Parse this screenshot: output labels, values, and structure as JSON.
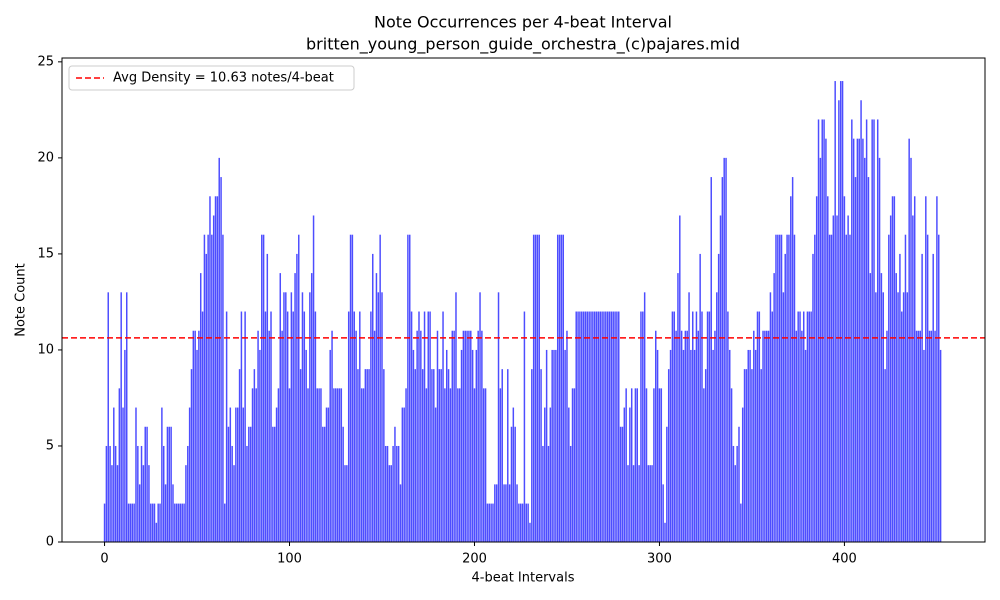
{
  "chart_data": {
    "type": "bar",
    "title": "Note Occurrences per 4-beat Interval",
    "subtitle": "britten_young_person_guide_orchestra_(c)pajares.mid",
    "xlabel": "4-beat Intervals",
    "ylabel": "Note Count",
    "color": "#4d4dff",
    "xlim": [
      -23,
      476
    ],
    "ylim": [
      0,
      25.2
    ],
    "xticks": [
      0,
      100,
      200,
      300,
      400
    ],
    "yticks": [
      0,
      5,
      10,
      15,
      20,
      25
    ],
    "legend": "upper left",
    "avg_line": {
      "value": 10.63,
      "label": "Avg Density = 10.63 notes/4-beat",
      "color": "#ff0000"
    },
    "x": [
      0,
      1,
      2,
      3,
      4,
      5,
      6,
      7,
      8,
      9,
      10,
      11,
      12,
      13,
      14,
      15,
      16,
      17,
      18,
      19,
      20,
      21,
      22,
      23,
      24,
      25,
      26,
      27,
      28,
      29,
      30,
      31,
      32,
      33,
      34,
      35,
      36,
      37,
      38,
      39,
      40,
      41,
      42,
      43,
      44,
      45,
      46,
      47,
      48,
      49,
      50,
      51,
      52,
      53,
      54,
      55,
      56,
      57,
      58,
      59,
      60,
      61,
      62,
      63,
      64,
      65,
      66,
      67,
      68,
      69,
      70,
      71,
      72,
      73,
      74,
      75,
      76,
      77,
      78,
      79,
      80,
      81,
      82,
      83,
      84,
      85,
      86,
      87,
      88,
      89,
      90,
      91,
      92,
      93,
      94,
      95,
      96,
      97,
      98,
      99,
      100,
      101,
      102,
      103,
      104,
      105,
      106,
      107,
      108,
      109,
      110,
      111,
      112,
      113,
      114,
      115,
      116,
      117,
      118,
      119,
      120,
      121,
      122,
      123,
      124,
      125,
      126,
      127,
      128,
      129,
      130,
      131,
      132,
      133,
      134,
      135,
      136,
      137,
      138,
      139,
      140,
      141,
      142,
      143,
      144,
      145,
      146,
      147,
      148,
      149,
      150,
      151,
      152,
      153,
      154,
      155,
      156,
      157,
      158,
      159,
      160,
      161,
      162,
      163,
      164,
      165,
      166,
      167,
      168,
      169,
      170,
      171,
      172,
      173,
      174,
      175,
      176,
      177,
      178,
      179,
      180,
      181,
      182,
      183,
      184,
      185,
      186,
      187,
      188,
      189,
      190,
      191,
      192,
      193,
      194,
      195,
      196,
      197,
      198,
      199,
      200,
      201,
      202,
      203,
      204,
      205,
      206,
      207,
      208,
      209,
      210,
      211,
      212,
      213,
      214,
      215,
      216,
      217,
      218,
      219,
      220,
      221,
      222,
      223,
      224,
      225,
      226,
      227,
      228,
      229,
      230,
      231,
      232,
      233,
      234,
      235,
      236,
      237,
      238,
      239,
      240,
      241,
      242,
      243,
      244,
      245,
      246,
      247,
      248,
      249,
      250,
      251,
      252,
      253,
      254,
      255,
      256,
      257,
      258,
      259,
      260,
      261,
      262,
      263,
      264,
      265,
      266,
      267,
      268,
      269,
      270,
      271,
      272,
      273,
      274,
      275,
      276,
      277,
      278,
      279,
      280,
      281,
      282,
      283,
      284,
      285,
      286,
      287,
      288,
      289,
      290,
      291,
      292,
      293,
      294,
      295,
      296,
      297,
      298,
      299,
      300,
      301,
      302,
      303,
      304,
      305,
      306,
      307,
      308,
      309,
      310,
      311,
      312,
      313,
      314,
      315,
      316,
      317,
      318,
      319,
      320,
      321,
      322,
      323,
      324,
      325,
      326,
      327,
      328,
      329,
      330,
      331,
      332,
      333,
      334,
      335,
      336,
      337,
      338,
      339,
      340,
      341,
      342,
      343,
      344,
      345,
      346,
      347,
      348,
      349,
      350,
      351,
      352,
      353,
      354,
      355,
      356,
      357,
      358,
      359,
      360,
      361,
      362,
      363,
      364,
      365,
      366,
      367,
      368,
      369,
      370,
      371,
      372,
      373,
      374,
      375,
      376,
      377,
      378,
      379,
      380,
      381,
      382,
      383,
      384,
      385,
      386,
      387,
      388,
      389,
      390,
      391,
      392,
      393,
      394,
      395,
      396,
      397,
      398,
      399,
      400,
      401,
      402,
      403,
      404,
      405,
      406,
      407,
      408,
      409,
      410,
      411,
      412,
      413,
      414,
      415,
      416,
      417,
      418,
      419,
      420,
      421,
      422,
      423,
      424,
      425,
      426,
      427,
      428,
      429,
      430,
      431,
      432,
      433,
      434,
      435,
      436,
      437,
      438,
      439,
      440,
      441,
      442,
      443,
      444,
      445,
      446,
      447,
      448,
      449,
      450,
      451,
      452
    ],
    "values": [
      2,
      5,
      13,
      5,
      4,
      7,
      5,
      4,
      8,
      13,
      7,
      10,
      13,
      2,
      2,
      2,
      2,
      7,
      5,
      3,
      5,
      4,
      6,
      6,
      4,
      2,
      2,
      2,
      1,
      2,
      2,
      7,
      5,
      3,
      6,
      6,
      6,
      3,
      2,
      2,
      2,
      2,
      2,
      2,
      4,
      5,
      7,
      9,
      11,
      11,
      10,
      11,
      14,
      12,
      16,
      15,
      16,
      18,
      16,
      17,
      18,
      18,
      20,
      19,
      16,
      2,
      12,
      6,
      7,
      5,
      4,
      7,
      7,
      9,
      12,
      7,
      12,
      5,
      6,
      6,
      8,
      9,
      8,
      11,
      10,
      16,
      16,
      12,
      15,
      11,
      12,
      6,
      6,
      7,
      8,
      14,
      11,
      13,
      13,
      12,
      8,
      13,
      12,
      14,
      15,
      16,
      9,
      13,
      12,
      10,
      8,
      13,
      14,
      17,
      12,
      8,
      8,
      8,
      6,
      6,
      7,
      7,
      10,
      11,
      8,
      8,
      8,
      8,
      8,
      6,
      4,
      4,
      12,
      16,
      16,
      12,
      11,
      9,
      12,
      8,
      8,
      9,
      9,
      9,
      12,
      15,
      11,
      14,
      13,
      16,
      13,
      9,
      5,
      5,
      4,
      4,
      5,
      6,
      5,
      5,
      3,
      7,
      7,
      8,
      16,
      16,
      12,
      10,
      9,
      11,
      12,
      11,
      9,
      12,
      8,
      12,
      12,
      9,
      9,
      7,
      11,
      9,
      9,
      12,
      8,
      10,
      9,
      8,
      11,
      11,
      13,
      8,
      8,
      10,
      11,
      11,
      11,
      11,
      11,
      10,
      8,
      10,
      11,
      13,
      11,
      8,
      8,
      2,
      2,
      2,
      2,
      3,
      3,
      13,
      8,
      9,
      3,
      3,
      9,
      3,
      6,
      7,
      6,
      3,
      2,
      2,
      2,
      12,
      2,
      2,
      1,
      9,
      16,
      16,
      16,
      16,
      9,
      5,
      7,
      10,
      5,
      7,
      10,
      10,
      10,
      16,
      16,
      16,
      16,
      10,
      11,
      7,
      5,
      8,
      8,
      12,
      12,
      12,
      12,
      12,
      12,
      12,
      12,
      12,
      12,
      12,
      12,
      12,
      12,
      12,
      12,
      12,
      12,
      12,
      12,
      12,
      12,
      12,
      12,
      6,
      6,
      7,
      8,
      4,
      7,
      8,
      4,
      8,
      8,
      4,
      12,
      12,
      13,
      8,
      4,
      4,
      4,
      8,
      11,
      10,
      8,
      8,
      3,
      1,
      6,
      9,
      10,
      12,
      12,
      11,
      14,
      17,
      11,
      10,
      11,
      11,
      13,
      10,
      12,
      10,
      12,
      11,
      15,
      12,
      8,
      9,
      12,
      12,
      19,
      10,
      11,
      13,
      15,
      17,
      19,
      20,
      20,
      12,
      10,
      8,
      5,
      4,
      5,
      6,
      2,
      7,
      9,
      9,
      10,
      10,
      9,
      11,
      10,
      12,
      12,
      9,
      11,
      11,
      11,
      11,
      13,
      12,
      14,
      16,
      16,
      16,
      16,
      13,
      15,
      16,
      16,
      18,
      19,
      16,
      11,
      12,
      12,
      11,
      12,
      10,
      12,
      12,
      12,
      15,
      16,
      18,
      22,
      20,
      22,
      22,
      21,
      18,
      16,
      16,
      17,
      24,
      17,
      23,
      24,
      24,
      18,
      16,
      17,
      16,
      22,
      21,
      19,
      21,
      21,
      23,
      21,
      20,
      22,
      19,
      14,
      22,
      22,
      13,
      22,
      20,
      14,
      13,
      9,
      11,
      16,
      17,
      18,
      18,
      14,
      13,
      15,
      12,
      13,
      16,
      13,
      21,
      20,
      17,
      18,
      11,
      11,
      11,
      15,
      10,
      18,
      16,
      11,
      11,
      15,
      11,
      18,
      16,
      10
    ]
  }
}
